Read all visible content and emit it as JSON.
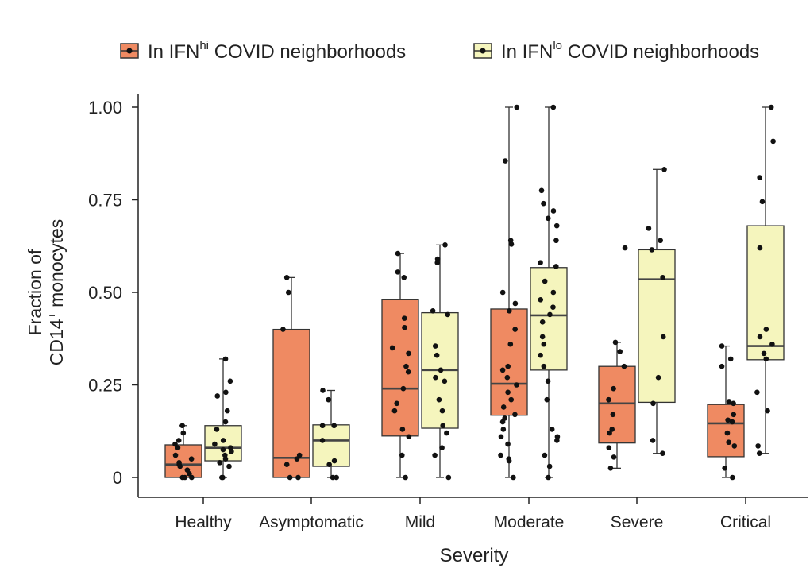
{
  "chart_data": {
    "type": "box",
    "title": "",
    "xlabel": "Severity",
    "ylabel": {
      "line1": "Fraction of",
      "line2_prefix": "CD14",
      "line2_sup": "+",
      "line2_suffix": " monocytes"
    },
    "ylim": [
      0,
      1.0
    ],
    "yticks": [
      {
        "value": 0,
        "label": "0"
      },
      {
        "value": 0.25,
        "label": "0.25"
      },
      {
        "value": 0.5,
        "label": "0.50"
      },
      {
        "value": 0.75,
        "label": "0.75"
      },
      {
        "value": 1.0,
        "label": "1.00"
      }
    ],
    "categories": [
      "Healthy",
      "Asymptomatic",
      "Mild",
      "Moderate",
      "Severe",
      "Critical"
    ],
    "legend": {
      "placement": "top",
      "entries": [
        {
          "prefix": "In IFN",
          "sup": "hi",
          "suffix": " COVID neighborhoods"
        },
        {
          "prefix": "In IFN",
          "sup": "lo",
          "suffix": " COVID neighborhoods"
        }
      ]
    },
    "series": [
      {
        "name": "In IFNhi COVID neighborhoods",
        "color": "#ef8a62",
        "boxes": [
          {
            "q1": 0.0,
            "median": 0.035,
            "q3": 0.088,
            "whisker_low": 0.0,
            "whisker_high": 0.14,
            "points": [
              0.14,
              0.12,
              0.1,
              0.09,
              0.08,
              0.06,
              0.05,
              0.04,
              0.035,
              0.03,
              0.02,
              0.01,
              0.0,
              0.0,
              0.0
            ]
          },
          {
            "q1": 0.0,
            "median": 0.053,
            "q3": 0.4,
            "whisker_low": 0.0,
            "whisker_high": 0.54,
            "points": [
              0.54,
              0.5,
              0.4,
              0.06,
              0.05,
              0.035,
              0.0,
              0.0
            ]
          },
          {
            "q1": 0.112,
            "median": 0.24,
            "q3": 0.48,
            "whisker_low": 0.0,
            "whisker_high": 0.605,
            "points": [
              0.605,
              0.555,
              0.54,
              0.43,
              0.405,
              0.35,
              0.335,
              0.3,
              0.285,
              0.24,
              0.2,
              0.18,
              0.13,
              0.11,
              0.06,
              0.0
            ]
          },
          {
            "q1": 0.168,
            "median": 0.253,
            "q3": 0.455,
            "whisker_low": 0.0,
            "whisker_high": 1.0,
            "points": [
              1.0,
              0.855,
              0.64,
              0.63,
              0.5,
              0.47,
              0.45,
              0.4,
              0.36,
              0.3,
              0.29,
              0.27,
              0.25,
              0.23,
              0.21,
              0.19,
              0.17,
              0.16,
              0.15,
              0.13,
              0.11,
              0.09,
              0.06,
              0.05,
              0.045,
              0.0
            ]
          },
          {
            "q1": 0.093,
            "median": 0.2,
            "q3": 0.3,
            "whisker_low": 0.025,
            "whisker_high": 0.365,
            "points": [
              0.62,
              0.365,
              0.34,
              0.3,
              0.24,
              0.21,
              0.17,
              0.13,
              0.12,
              0.08,
              0.055,
              0.025
            ]
          },
          {
            "q1": 0.056,
            "median": 0.146,
            "q3": 0.197,
            "whisker_low": 0.0,
            "whisker_high": 0.355,
            "points": [
              0.355,
              0.32,
              0.3,
              0.205,
              0.2,
              0.17,
              0.155,
              0.15,
              0.12,
              0.095,
              0.085,
              0.025,
              0.0
            ]
          }
        ]
      },
      {
        "name": "In IFNlo COVID neighborhoods",
        "color": "#f5f5bd",
        "boxes": [
          {
            "q1": 0.045,
            "median": 0.08,
            "q3": 0.14,
            "whisker_low": 0.0,
            "whisker_high": 0.32,
            "points": [
              0.32,
              0.26,
              0.23,
              0.22,
              0.18,
              0.15,
              0.13,
              0.1,
              0.09,
              0.08,
              0.075,
              0.07,
              0.06,
              0.05,
              0.04,
              0.03,
              0.0,
              0.0
            ]
          },
          {
            "q1": 0.03,
            "median": 0.1,
            "q3": 0.142,
            "whisker_low": 0.0,
            "whisker_high": 0.235,
            "points": [
              0.235,
              0.21,
              0.14,
              0.14,
              0.1,
              0.045,
              0.035,
              0.0,
              0.0
            ]
          },
          {
            "q1": 0.133,
            "median": 0.29,
            "q3": 0.445,
            "whisker_low": 0.0,
            "whisker_high": 0.628,
            "points": [
              0.628,
              0.59,
              0.58,
              0.45,
              0.44,
              0.355,
              0.33,
              0.29,
              0.27,
              0.26,
              0.21,
              0.18,
              0.14,
              0.12,
              0.08,
              0.06,
              0.0
            ]
          },
          {
            "q1": 0.29,
            "median": 0.438,
            "q3": 0.567,
            "whisker_low": 0.0,
            "whisker_high": 1.0,
            "points": [
              1.0,
              0.775,
              0.74,
              0.72,
              0.7,
              0.68,
              0.64,
              0.58,
              0.57,
              0.53,
              0.5,
              0.48,
              0.46,
              0.44,
              0.42,
              0.38,
              0.36,
              0.33,
              0.3,
              0.26,
              0.21,
              0.13,
              0.11,
              0.1,
              0.06,
              0.03,
              0.0
            ]
          },
          {
            "q1": 0.203,
            "median": 0.535,
            "q3": 0.615,
            "whisker_low": 0.065,
            "whisker_high": 0.832,
            "points": [
              0.832,
              0.673,
              0.64,
              0.615,
              0.54,
              0.38,
              0.27,
              0.2,
              0.1,
              0.065
            ]
          },
          {
            "q1": 0.318,
            "median": 0.355,
            "q3": 0.68,
            "whisker_low": 0.065,
            "whisker_high": 1.0,
            "points": [
              1.0,
              0.908,
              0.81,
              0.745,
              0.62,
              0.4,
              0.38,
              0.36,
              0.335,
              0.32,
              0.23,
              0.18,
              0.085,
              0.065
            ]
          }
        ]
      }
    ]
  }
}
